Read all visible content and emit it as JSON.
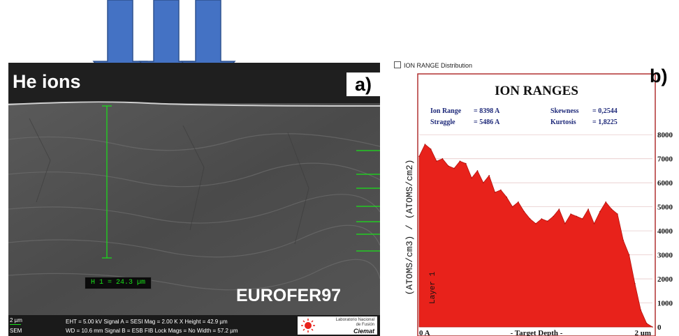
{
  "panel_a": {
    "label": "a)",
    "ion_label": "He ions",
    "material_label": "EUROFER97",
    "measurement_label": "H 1 = 24.3 µm",
    "databar": {
      "scale": "2 µm",
      "mode": "SEM",
      "row1": "EHT = 5.00 kV   Signal A = SESI     Mag =   2.00 K X  Height = 42.9 µm",
      "row2": "WD = 10.6 mm   Signal B = ESB  FIB Lock Mags = No  Width = 57.2 µm"
    },
    "logo": {
      "line1": "Laboratorio Nacional",
      "line2": "de Fusión",
      "brand": "Ciemat"
    },
    "colors": {
      "arrow": "#4472c4",
      "measure": "#19e219"
    }
  },
  "panel_b": {
    "label": "b)",
    "window_title": "ION RANGE Distribution",
    "stats": {
      "ion_range_label": "Ion Range",
      "ion_range_value": "= 8398 A",
      "straggle_label": "Straggle",
      "straggle_value": "= 5486 A",
      "skewness_label": "Skewness",
      "skewness_value": "= 0,2544",
      "kurtosis_label": "Kurtosis",
      "kurtosis_value": "= 1,8225"
    },
    "layer_label": "Layer 1"
  },
  "chart_data": {
    "type": "area",
    "title": "ION RANGES",
    "xlabel": "- Target Depth -",
    "ylabel": "(ATOMS/cm3) / (ATOMS/cm2)",
    "x_tick_labels": [
      "0 A",
      "2 um"
    ],
    "xlim": [
      0,
      2
    ],
    "ylim": [
      0,
      8500
    ],
    "y_ticks": [
      0,
      1000,
      2000,
      3000,
      4000,
      5000,
      6000,
      7000,
      8000
    ],
    "series_color": "#e8221b",
    "series": [
      {
        "x": [
          0.0,
          0.05,
          0.1,
          0.15,
          0.2,
          0.25,
          0.3,
          0.35,
          0.4,
          0.45,
          0.5,
          0.55,
          0.6,
          0.65,
          0.7,
          0.75,
          0.8,
          0.85,
          0.9,
          0.95,
          1.0,
          1.05,
          1.1,
          1.15,
          1.2,
          1.25,
          1.3,
          1.35,
          1.4,
          1.45,
          1.5,
          1.55,
          1.6,
          1.65,
          1.7,
          1.75,
          1.8,
          1.85,
          1.9,
          1.95,
          2.0
        ],
        "values": [
          7100,
          7600,
          7400,
          6900,
          7000,
          6700,
          6600,
          6900,
          6800,
          6200,
          6500,
          6000,
          6300,
          5600,
          5700,
          5400,
          5000,
          5200,
          4800,
          4500,
          4300,
          4500,
          4400,
          4600,
          4900,
          4300,
          4700,
          4600,
          4500,
          4900,
          4300,
          4800,
          5200,
          4900,
          4700,
          3600,
          3000,
          1800,
          700,
          150,
          0
        ]
      }
    ]
  }
}
